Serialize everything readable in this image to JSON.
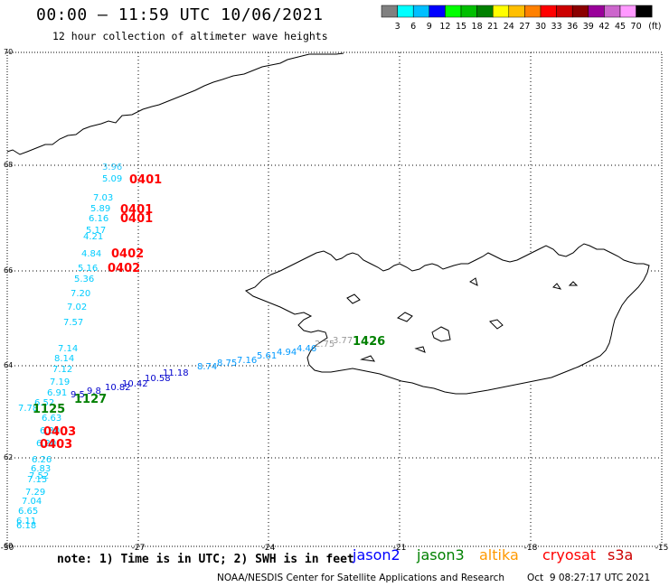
{
  "header": {
    "title": "00:00 – 11:59 UTC 10/06/2021",
    "subtitle": "12 hour collection of altimeter wave heights"
  },
  "colorbar": {
    "swatches": [
      "#808080",
      "#00ffff",
      "#00bfff",
      "#0000ff",
      "#00ff00",
      "#00bf00",
      "#008000",
      "#ffff00",
      "#ffbf00",
      "#ff8000",
      "#ff0000",
      "#cc0000",
      "#8b0000",
      "#990099",
      "#cc66cc",
      "#ff99ff",
      "#000000"
    ],
    "labels": [
      "3",
      "6",
      "9",
      "12",
      "15",
      "18",
      "21",
      "24",
      "27",
      "30",
      "33",
      "36",
      "39",
      "42",
      "45",
      "70"
    ],
    "unit": "(ft)"
  },
  "axes": {
    "x_ticks": [
      "-30",
      "-27",
      "-24",
      "-21",
      "-18",
      "-15"
    ],
    "y_ticks": [
      "70",
      "68",
      "66",
      "64",
      "62",
      "60"
    ]
  },
  "footer": {
    "note": "note: 1) Time is in UTC; 2) SWH is in feet",
    "legend": {
      "jason2": "jason2",
      "jason3": "jason3",
      "altika": "altika",
      "cryosat": "cryosat",
      "s3a": "s3a"
    },
    "credit": "NOAA/NESDIS Center for Satellite Applications and Research",
    "timestamp": "Oct  9 08:27:17 UTC 2021"
  },
  "labels": {
    "swh": [
      "3.96",
      "5.09",
      "7.03",
      "5.89",
      "6.16",
      "5.17",
      "4.21",
      "4.84",
      "5.16",
      "5.36",
      "7.20",
      "7.02",
      "7.57",
      "7.14",
      "8.14",
      "7.12",
      "7.19",
      "6.91",
      "6.52",
      "7.78",
      "6.63",
      "6.30",
      "6.20",
      "6.26",
      "6.83",
      "7.52",
      "7.15",
      "7.29",
      "7.04",
      "6.65",
      "6.11",
      "6.18",
      "9.5",
      "9.8",
      "10.82",
      "10.42",
      "10.58",
      "11.18",
      "8.74",
      "8.75",
      "7.16",
      "5.61",
      "4.94",
      "4.46",
      "2.75",
      "3.77"
    ],
    "times": [
      "0401",
      "0401",
      "0401",
      "0402",
      "0402",
      "1426",
      "1125",
      "1127",
      "0403",
      "0403"
    ]
  }
}
